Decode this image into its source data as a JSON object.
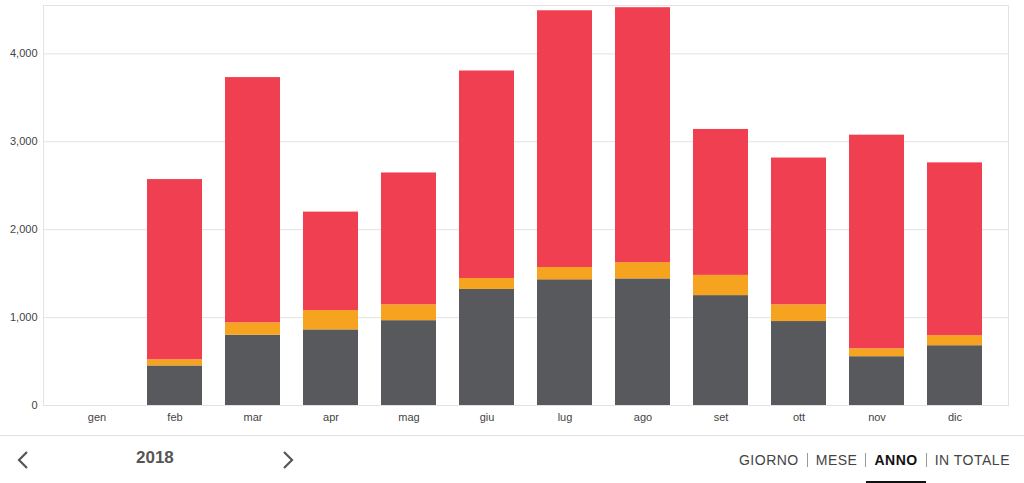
{
  "chart_data": {
    "type": "bar",
    "stacked": true,
    "grid": true,
    "categories": [
      "gen",
      "feb",
      "mar",
      "apr",
      "mag",
      "giu",
      "lug",
      "ago",
      "set",
      "ott",
      "nov",
      "dic"
    ],
    "series": [
      {
        "color": "#58595d",
        "values": [
          null,
          450,
          800,
          860,
          965,
          1320,
          1430,
          1440,
          1250,
          955,
          555,
          680
        ]
      },
      {
        "color": "#f6a31f",
        "values": [
          null,
          70,
          140,
          220,
          180,
          125,
          140,
          185,
          230,
          190,
          90,
          115
        ]
      },
      {
        "color": "#ef3f51",
        "values": [
          null,
          2050,
          2790,
          1120,
          1500,
          2360,
          2920,
          2900,
          1660,
          1670,
          2430,
          1965
        ]
      }
    ],
    "ylim": [
      0,
      4550
    ],
    "yticks": [
      0,
      1000,
      2000,
      3000,
      4000
    ]
  },
  "navigation": {
    "year": "2018",
    "views": [
      "GIORNO",
      "MESE",
      "ANNO",
      "IN TOTALE"
    ],
    "selected": "ANNO"
  }
}
